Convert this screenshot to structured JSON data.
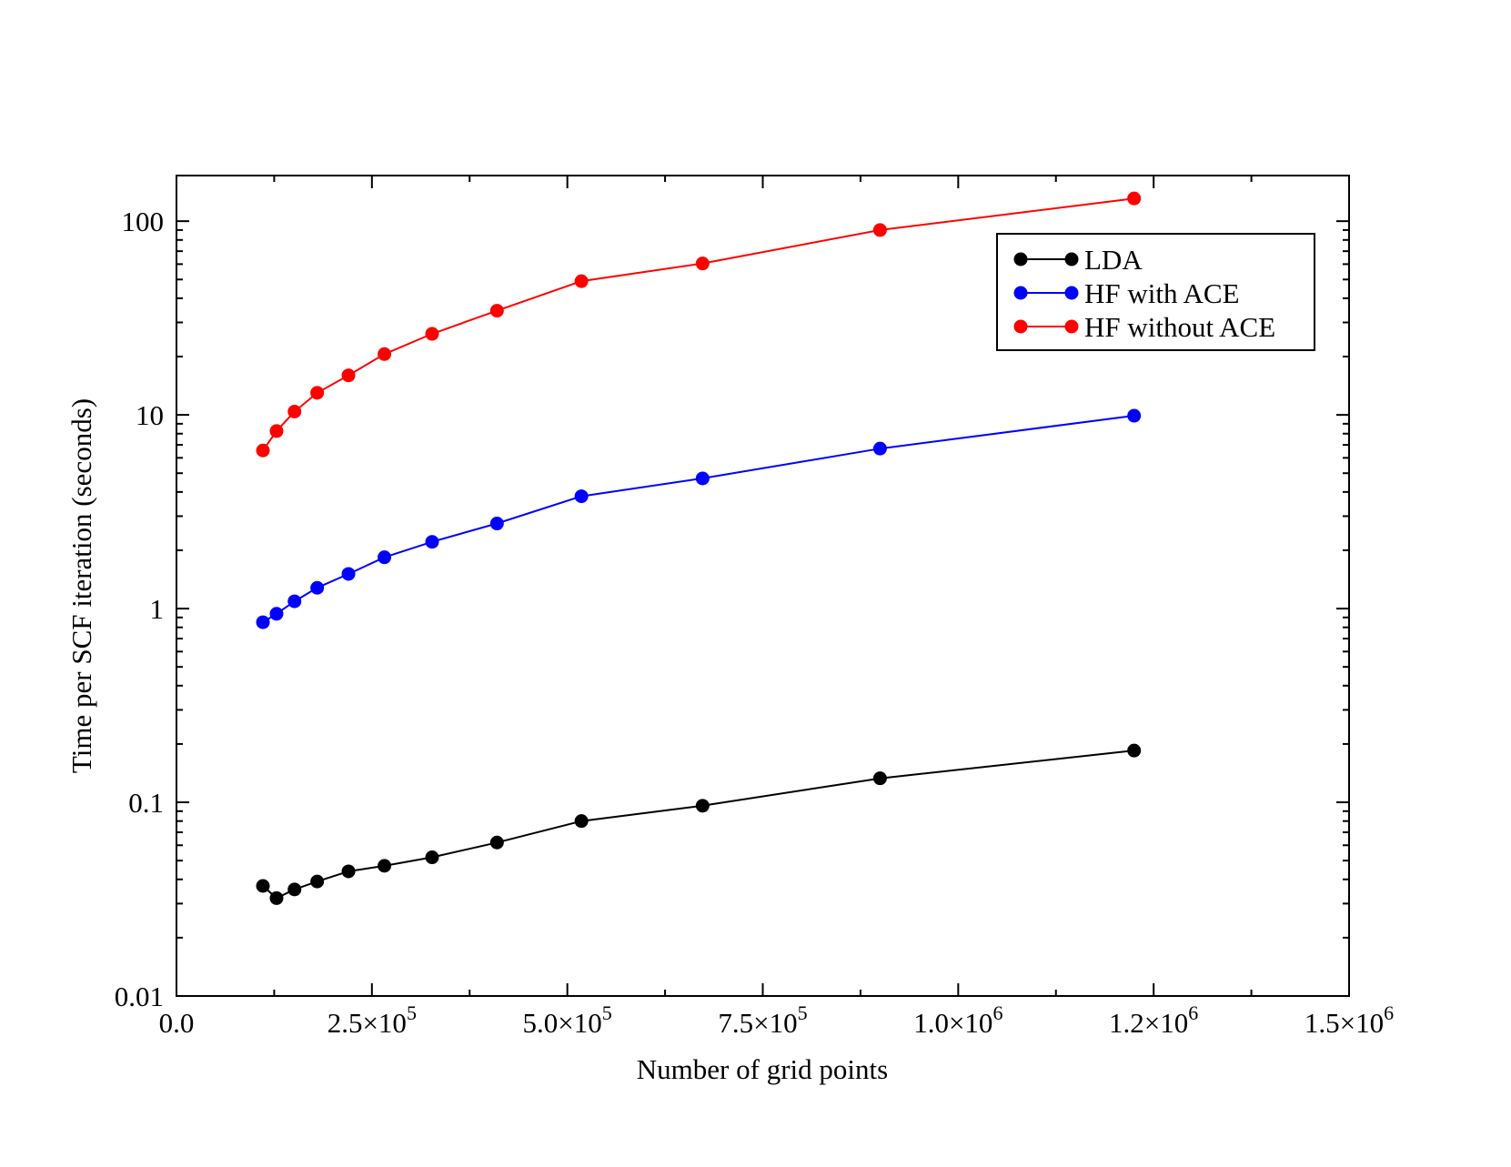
{
  "chart_data": {
    "type": "line",
    "title": "",
    "xlabel": "Number of grid points",
    "ylabel": "Time per SCF iteration (seconds)",
    "xlim": [
      0,
      1500000
    ],
    "ylim": [
      0.01,
      172
    ],
    "yscale": "log",
    "x_ticks": [
      {
        "value": 0,
        "mantissa": "0.0",
        "exponent": ""
      },
      {
        "value": 250000,
        "mantissa": "2.5×10",
        "exponent": "5"
      },
      {
        "value": 500000,
        "mantissa": "5.0×10",
        "exponent": "5"
      },
      {
        "value": 750000,
        "mantissa": "7.5×10",
        "exponent": "5"
      },
      {
        "value": 1000000,
        "mantissa": "1.0×10",
        "exponent": "6"
      },
      {
        "value": 1250000,
        "mantissa": "1.2×10",
        "exponent": "6"
      },
      {
        "value": 1500000,
        "mantissa": "1.5×10",
        "exponent": "6"
      }
    ],
    "y_ticks": [
      {
        "value": 0.01,
        "label": "0.01"
      },
      {
        "value": 0.1,
        "label": "0.1"
      },
      {
        "value": 1,
        "label": "1"
      },
      {
        "value": 10,
        "label": "10"
      },
      {
        "value": 100,
        "label": "100"
      }
    ],
    "legend_position": "top-right",
    "series": [
      {
        "name": "LDA",
        "color": "#000000",
        "x": [
          110592,
          128000,
          151000,
          180000,
          220000,
          266000,
          327000,
          410000,
          518000,
          673000,
          900000,
          1225000
        ],
        "y": [
          0.037,
          0.032,
          0.0355,
          0.039,
          0.044,
          0.047,
          0.052,
          0.062,
          0.08,
          0.096,
          0.133,
          0.185
        ]
      },
      {
        "name": "HF with ACE",
        "color": "#0000ff",
        "x": [
          110592,
          128000,
          151000,
          180000,
          220000,
          266000,
          327000,
          410000,
          518000,
          673000,
          900000,
          1225000
        ],
        "y": [
          0.85,
          0.94,
          1.09,
          1.28,
          1.51,
          1.84,
          2.21,
          2.75,
          3.8,
          4.7,
          6.7,
          9.9
        ]
      },
      {
        "name": "HF without ACE",
        "color": "#ff0000",
        "x": [
          110592,
          128000,
          151000,
          180000,
          220000,
          266000,
          327000,
          410000,
          518000,
          673000,
          900000,
          1225000
        ],
        "y": [
          6.55,
          8.25,
          10.4,
          13.0,
          16.0,
          20.6,
          26.2,
          34.5,
          49.0,
          60.5,
          90.0,
          131.0
        ]
      }
    ]
  }
}
